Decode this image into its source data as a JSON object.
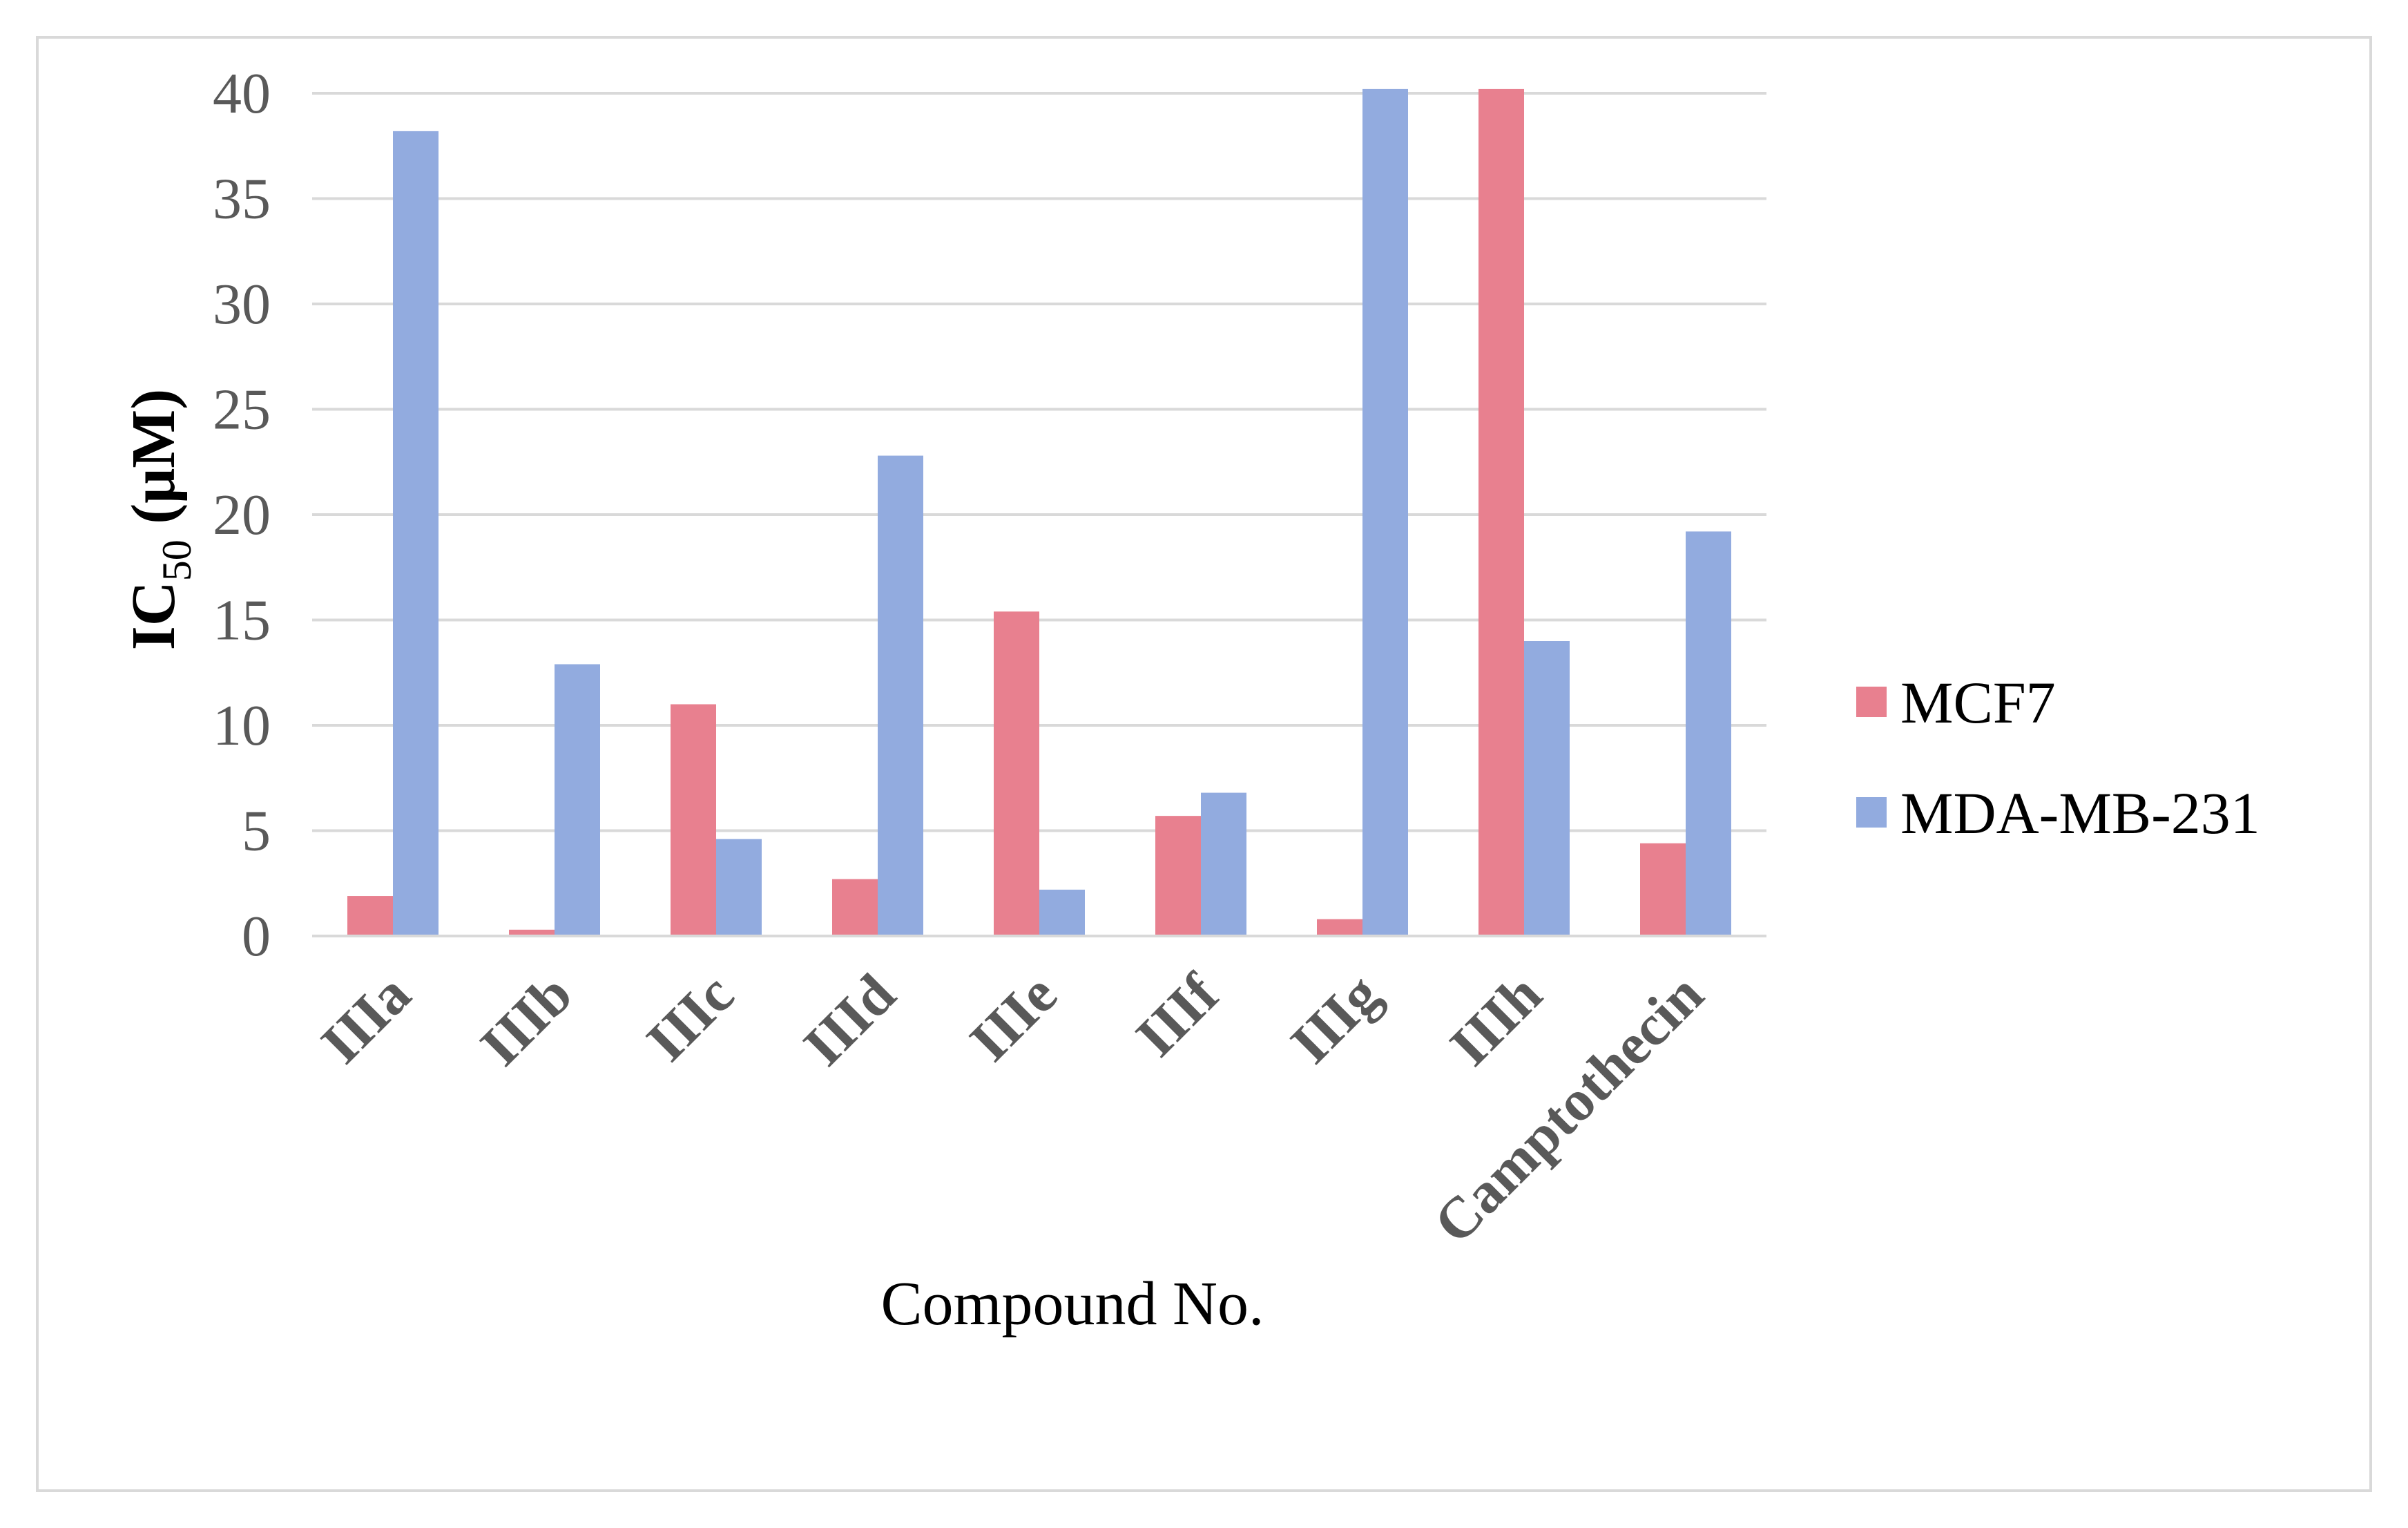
{
  "chart_data": {
    "type": "bar",
    "title": "",
    "xlabel": "Compound No.",
    "ylabel": {
      "main": "IC",
      "subscript": "50",
      "unit": " (μM)"
    },
    "ylim": [
      0,
      40
    ],
    "yticks": [
      0,
      5,
      10,
      15,
      20,
      25,
      30,
      35,
      40
    ],
    "grid": true,
    "legend_position": "right",
    "categories": [
      "IIIa",
      "IIIb",
      "IIIc",
      "IIId",
      "IIIe",
      "IIIf",
      "IIIg",
      "IIIh",
      "Camptothecin"
    ],
    "series": [
      {
        "name": "MCF7",
        "color": "#e8808f",
        "values": [
          1.9,
          0.3,
          11.0,
          2.7,
          15.4,
          5.7,
          0.8,
          40.2,
          4.4
        ]
      },
      {
        "name": "MDA-MB-231",
        "color": "#92abdf",
        "values": [
          38.2,
          12.9,
          4.6,
          22.8,
          2.2,
          6.8,
          40.2,
          14.0,
          19.2
        ]
      }
    ]
  }
}
